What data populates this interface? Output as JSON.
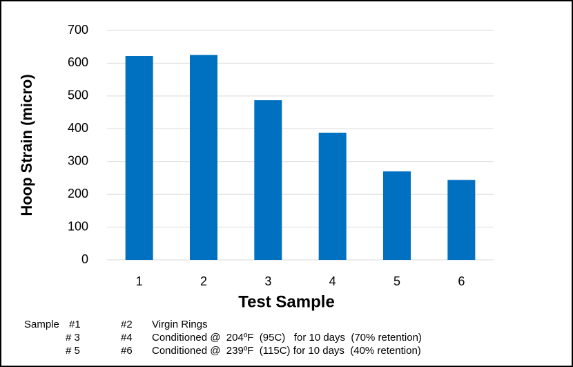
{
  "chart_data": {
    "type": "bar",
    "ylabel": "Hoop Strain (micro)",
    "xlabel": "Test Sample",
    "categories": [
      "1",
      "2",
      "3",
      "4",
      "5",
      "6"
    ],
    "values": [
      622,
      625,
      487,
      388,
      270,
      244
    ],
    "color": "#0070c0",
    "ylim": [
      0,
      700
    ],
    "yticks": [
      0,
      100,
      200,
      300,
      400,
      500,
      600,
      700
    ],
    "grid": true,
    "notes": [
      [
        "Sample",
        "#1",
        "#2",
        "Virgin Rings"
      ],
      [
        "# 3",
        "#4",
        "Conditioned @  204ºF  (95C)   for 10 days  (70% retention)"
      ],
      [
        "# 5",
        "#6",
        "Conditioned @  239ºF  (115C) for 10 days  (40% retention)"
      ]
    ]
  }
}
